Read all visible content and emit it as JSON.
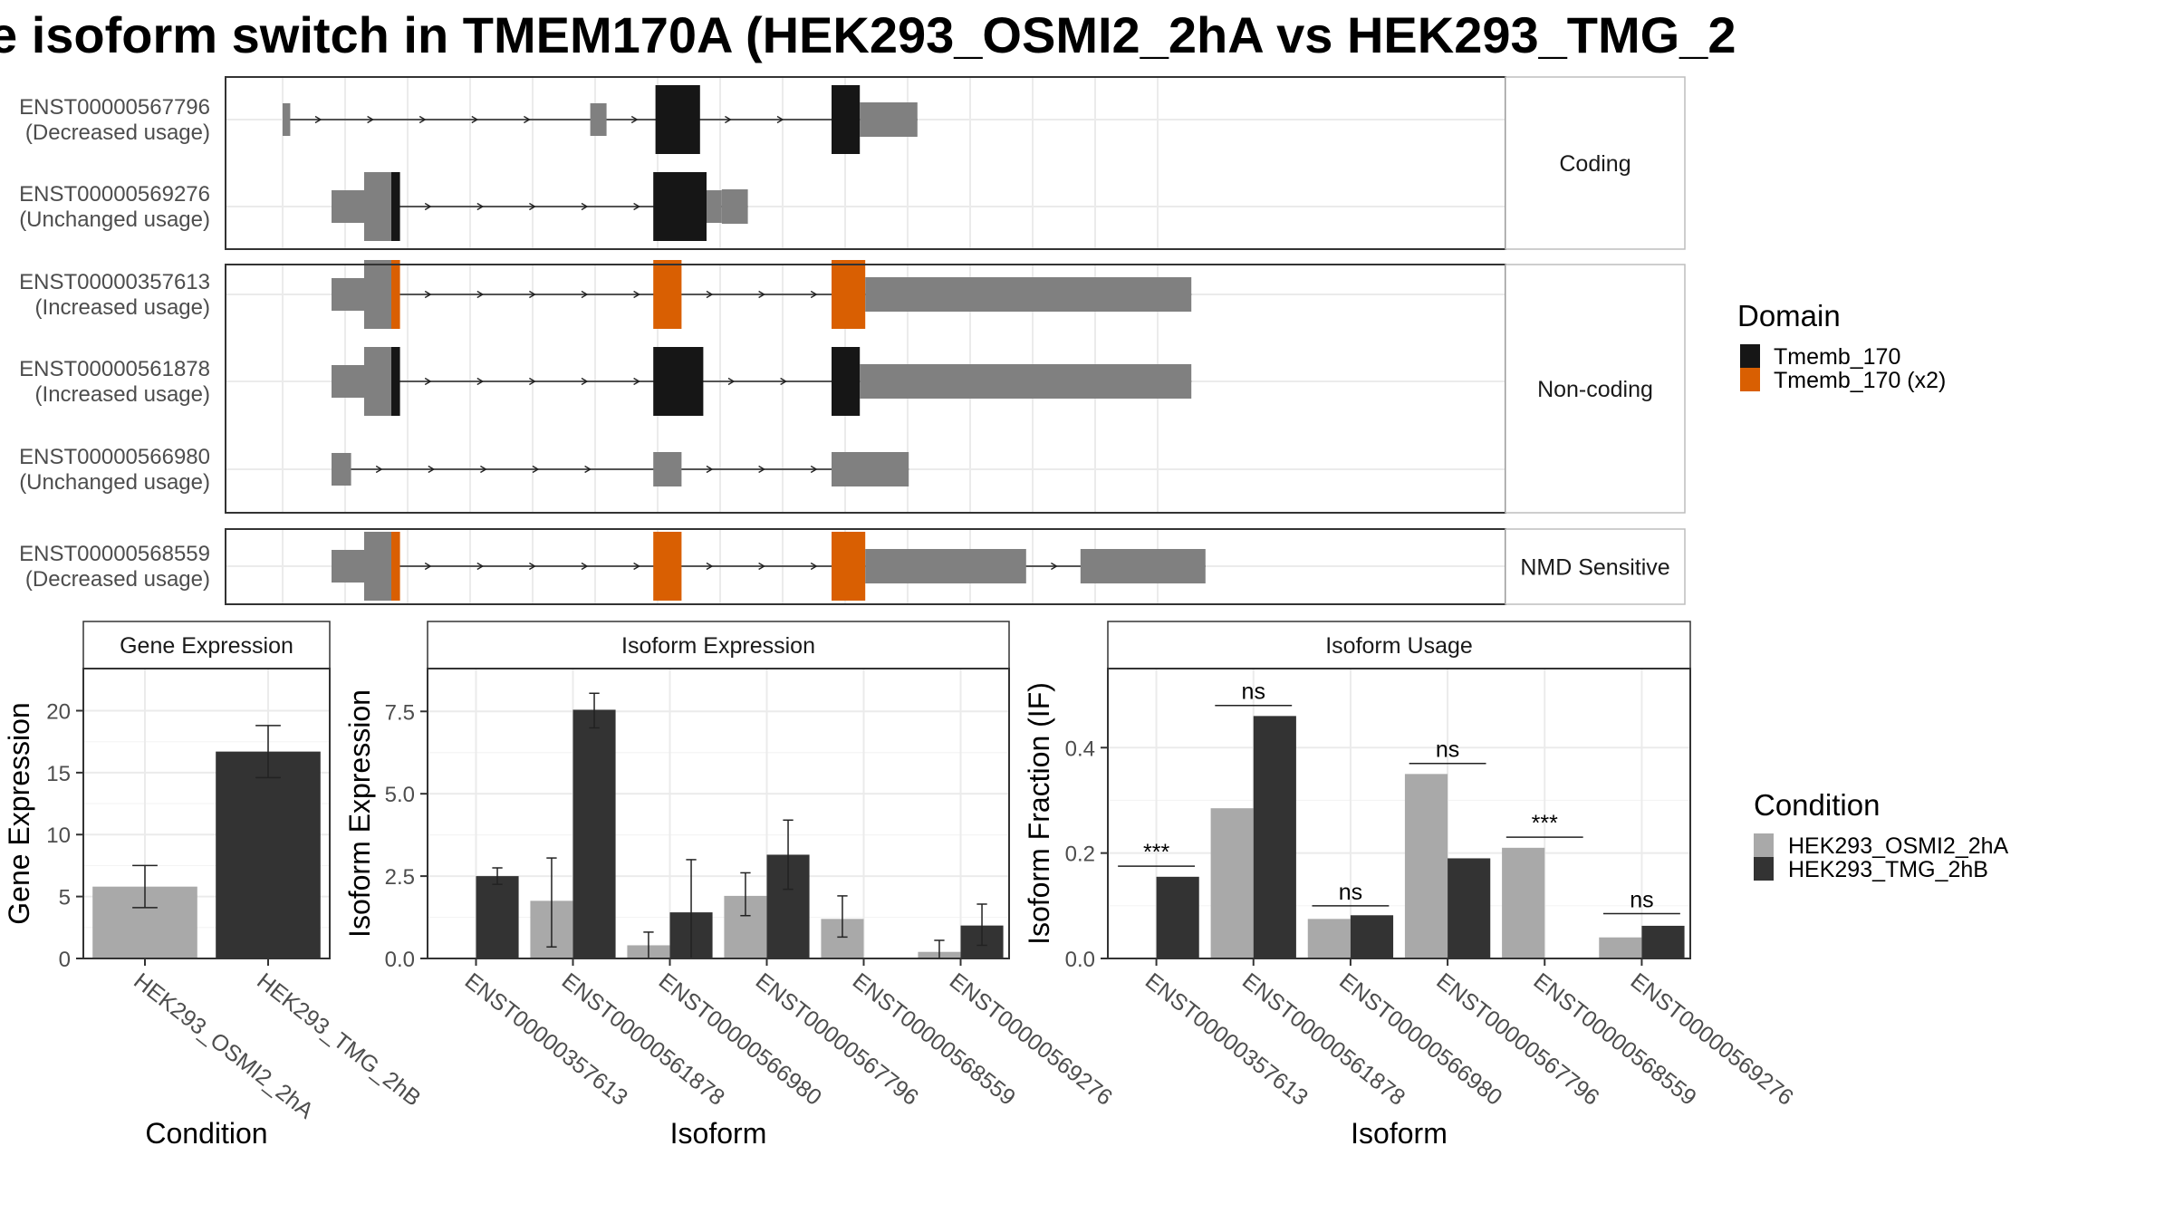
{
  "title": "e isoform switch in TMEM170A (HEK293_OSMI2_2hA vs HEK293_TMG_2",
  "colors": {
    "domain_black": "#161616",
    "domain_orange": "#d95f02",
    "exon_gray": "#808080",
    "cond_light": "#a9a9a9",
    "cond_dark": "#333333"
  },
  "chart_data": [
    {
      "type": "gene-structure",
      "groups": [
        {
          "label": "Coding",
          "transcripts": [
            {
              "id": "ENST00000567796",
              "usage": "(Decreased usage)",
              "exons": [
                [
                  0,
                  7,
                  "utr"
                ],
                [
                  283,
                  298,
                  "utr"
                ],
                [
                  343,
                  384,
                  "black"
                ],
                [
                  505,
                  531,
                  "black"
                ],
                [
                  531,
                  584,
                  "utr"
                ]
              ]
            },
            {
              "id": "ENST00000569276",
              "usage": "(Unchanged usage)",
              "exons": [
                [
                  45,
                  75,
                  "utr"
                ],
                [
                  75,
                  100,
                  "utr"
                ],
                [
                  100,
                  108,
                  "black"
                ],
                [
                  341,
                  390,
                  "black"
                ],
                [
                  390,
                  404,
                  "utr"
                ],
                [
                  404,
                  428,
                  "utr"
                ]
              ]
            }
          ]
        },
        {
          "label": "Non-coding",
          "transcripts": [
            {
              "id": "ENST00000357613",
              "usage": "(Increased usage)",
              "exons": [
                [
                  45,
                  75,
                  "utr"
                ],
                [
                  75,
                  100,
                  "utr"
                ],
                [
                  100,
                  108,
                  "orange"
                ],
                [
                  341,
                  367,
                  "orange"
                ],
                [
                  505,
                  536,
                  "orange"
                ],
                [
                  536,
                  836,
                  "utr"
                ]
              ]
            },
            {
              "id": "ENST00000561878",
              "usage": "(Increased usage)",
              "exons": [
                [
                  45,
                  75,
                  "utr"
                ],
                [
                  75,
                  100,
                  "utr"
                ],
                [
                  100,
                  108,
                  "black"
                ],
                [
                  341,
                  387,
                  "black"
                ],
                [
                  505,
                  531,
                  "black"
                ],
                [
                  531,
                  836,
                  "utr"
                ]
              ]
            },
            {
              "id": "ENST00000566980",
              "usage": "(Unchanged usage)",
              "exons": [
                [
                  45,
                  63,
                  "utr"
                ],
                [
                  341,
                  367,
                  "utr"
                ],
                [
                  505,
                  576,
                  "utr"
                ]
              ]
            }
          ]
        },
        {
          "label": "NMD Sensitive",
          "transcripts": [
            {
              "id": "ENST00000568559",
              "usage": "(Decreased usage)",
              "exons": [
                [
                  45,
                  75,
                  "utr"
                ],
                [
                  75,
                  100,
                  "utr"
                ],
                [
                  100,
                  108,
                  "orange"
                ],
                [
                  341,
                  367,
                  "orange"
                ],
                [
                  505,
                  536,
                  "orange"
                ],
                [
                  536,
                  684,
                  "utr"
                ],
                [
                  734,
                  849,
                  "utr"
                ]
              ]
            }
          ]
        }
      ],
      "legend_title": "Domain",
      "legend": [
        {
          "label": "Tmemb_170",
          "color": "#161616"
        },
        {
          "label": "Tmemb_170 (x2)",
          "color": "#d95f02"
        }
      ]
    },
    {
      "type": "bar",
      "title": "Gene Expression",
      "xlabel": "Condition",
      "ylabel": "Gene Expression",
      "ylim": [
        0,
        23.4
      ],
      "yticks": [
        0,
        5,
        10,
        15,
        20
      ],
      "categories": [
        "HEK293_OSMI2_2hA",
        "HEK293_TMG_2hB"
      ],
      "values": [
        5.8,
        16.7
      ],
      "err_low": [
        4.1,
        14.6
      ],
      "err_high": [
        7.5,
        18.8
      ]
    },
    {
      "type": "bar",
      "title": "Isoform Expression",
      "xlabel": "Isoform",
      "ylabel": "Isoform Expression",
      "ylim": [
        0,
        8.8
      ],
      "yticks": [
        0.0,
        2.5,
        5.0,
        7.5
      ],
      "yticklabels": [
        "0.0",
        "2.5",
        "5.0",
        "7.5"
      ],
      "categories": [
        "ENST00000357613",
        "ENST00000561878",
        "ENST00000566980",
        "ENST00000567796",
        "ENST00000568559",
        "ENST00000569276"
      ],
      "series": [
        {
          "values": [
            0.0,
            1.75,
            0.4,
            1.9,
            1.2,
            0.2
          ],
          "err_low": [
            0.0,
            0.35,
            0.0,
            1.3,
            0.65,
            0.0
          ],
          "err_high": [
            0.0,
            3.05,
            0.8,
            2.6,
            1.9,
            0.55
          ]
        },
        {
          "values": [
            2.5,
            7.55,
            1.4,
            3.15,
            0.0,
            1.0
          ],
          "err_low": [
            2.25,
            7.0,
            0.0,
            2.1,
            0.0,
            0.4
          ],
          "err_high": [
            2.75,
            8.05,
            3.0,
            4.2,
            0.0,
            1.65
          ]
        }
      ]
    },
    {
      "type": "bar",
      "title": "Isoform Usage",
      "xlabel": "Isoform",
      "ylabel": "Isoform Fraction (IF)",
      "ylim": [
        0,
        0.55
      ],
      "yticks": [
        0.0,
        0.2,
        0.4
      ],
      "yticklabels": [
        "0.0",
        "0.2",
        "0.4"
      ],
      "categories": [
        "ENST00000357613",
        "ENST00000561878",
        "ENST00000566980",
        "ENST00000567796",
        "ENST00000568559",
        "ENST00000569276"
      ],
      "series": [
        {
          "values": [
            0.0,
            0.285,
            0.075,
            0.35,
            0.21,
            0.04
          ]
        },
        {
          "values": [
            0.155,
            0.46,
            0.082,
            0.19,
            0.0,
            0.062
          ]
        }
      ],
      "significance": [
        "***",
        "ns",
        "ns",
        "ns",
        "***",
        "ns"
      ],
      "sig_y": [
        0.175,
        0.48,
        0.1,
        0.37,
        0.23,
        0.085
      ]
    }
  ],
  "condition_legend": {
    "title": "Condition",
    "items": [
      {
        "label": "HEK293_OSMI2_2hA",
        "color": "#a9a9a9"
      },
      {
        "label": "HEK293_TMG_2hB",
        "color": "#333333"
      }
    ]
  }
}
